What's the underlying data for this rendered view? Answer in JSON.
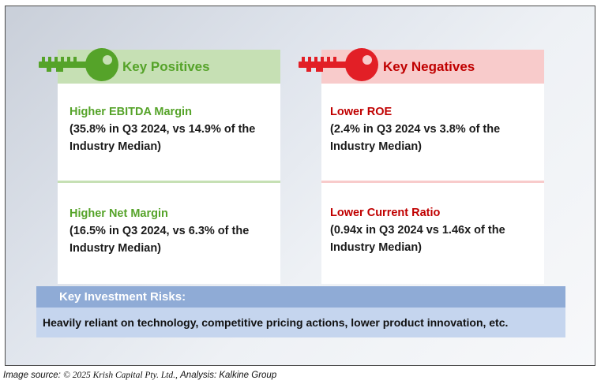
{
  "positives": {
    "title": "Key Positives",
    "items": [
      {
        "heading": "Higher EBITDA Margin",
        "line1": "(35.8% in Q3 2024, vs 14.9% of the",
        "line2": "Industry Median)"
      },
      {
        "heading": "Higher Net Margin",
        "line1": "(16.5% in Q3 2024, vs 6.3% of the",
        "line2": "Industry Median)"
      }
    ]
  },
  "negatives": {
    "title": "Key Negatives",
    "items": [
      {
        "heading": "Lower ROE",
        "line1": "(2.4% in Q3 2024 vs 3.8% of the",
        "line2": "Industry Median)"
      },
      {
        "heading": "Lower Current Ratio",
        "line1": "(0.94x in Q3 2024 vs 1.46x of the",
        "line2": "Industry Median)"
      }
    ]
  },
  "risks": {
    "title": "Key Investment Risks:",
    "text": "Heavily reliant on technology, competitive pricing actions, lower product innovation, etc."
  },
  "source": {
    "prefix": "Image source:",
    "copyright": "© 2025 Krish Capital Pty. Ltd.,",
    "analysis": "Analysis: Kalkine Group"
  },
  "colors": {
    "positive_green": "#55a329",
    "positive_header_bg": "#c6e0b4",
    "negative_red": "#c00000",
    "negative_header_bg": "#f8cbcb",
    "risk_header_bg": "#8fabd6",
    "risk_body_bg": "#c5d5ee"
  },
  "icons": {
    "positives": "green-key-icon",
    "negatives": "red-key-icon"
  }
}
